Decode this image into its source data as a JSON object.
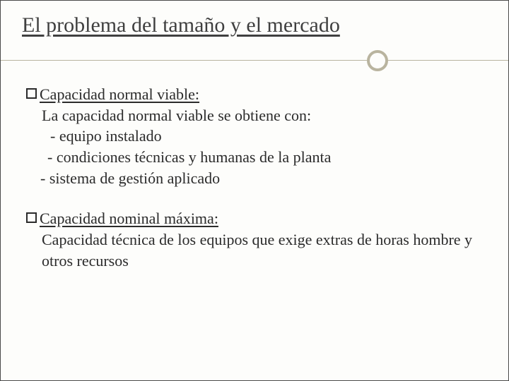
{
  "title": "El problema del tamaño y el mercado",
  "section1": {
    "heading": "Capacidad normal viable:",
    "intro": "La capacidad normal viable se obtiene con:",
    "item1": "- equipo instalado",
    "item2": "- condiciones técnicas  y humanas de la planta",
    "item3": "- sistema de gestión aplicado"
  },
  "section2": {
    "heading": "Capacidad nominal máxima:",
    "body": "Capacidad técnica de los equipos que exige extras de horas hombre y otros recursos"
  },
  "colors": {
    "background": "#fdfdfb",
    "text": "#2b2b2b",
    "title": "#3f3f3f",
    "accent": "#b9b49f",
    "border": "#4a4a4a"
  }
}
